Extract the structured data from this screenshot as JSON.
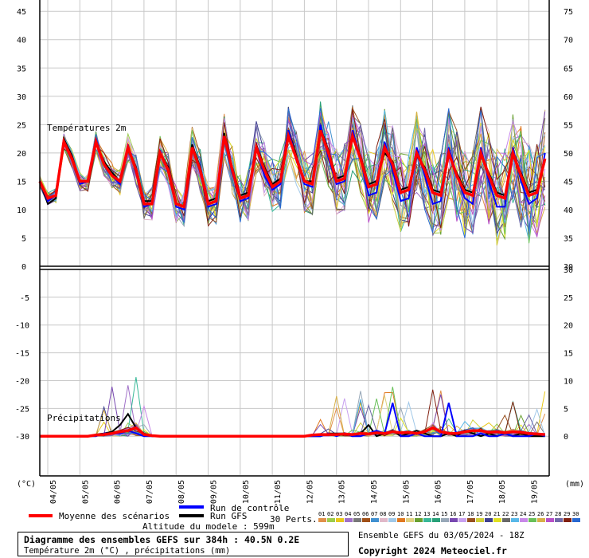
{
  "chart_data": [
    {
      "type": "line",
      "title": "Températures 2m",
      "left_axis_unit": "(°C)",
      "right_axis_unit": "(mm)",
      "ylim": [
        0,
        47
      ],
      "y_ticks": [
        0,
        5,
        10,
        15,
        20,
        25,
        30,
        35,
        40,
        45
      ],
      "y2_ticks": [
        30,
        35,
        40,
        45,
        50,
        55,
        60,
        65,
        70,
        75
      ],
      "x_labels": [
        "04/05",
        "05/05",
        "06/05",
        "07/05",
        "08/05",
        "09/05",
        "10/05",
        "11/05",
        "12/05",
        "13/05",
        "14/05",
        "15/05",
        "16/05",
        "17/05",
        "18/05",
        "19/05"
      ],
      "grid": true,
      "series": [
        {
          "name": "Moyenne des scénarios",
          "color": "#ff0000",
          "x": [
            0,
            0.25,
            0.5,
            0.75,
            1,
            1.25,
            1.5,
            1.75,
            2,
            2.25,
            2.5,
            2.75,
            3,
            3.25,
            3.5,
            3.75,
            4,
            4.25,
            4.5,
            4.75,
            5,
            5.25,
            5.5,
            5.75,
            6,
            6.25,
            6.5,
            6.75,
            7,
            7.25,
            7.5,
            7.75,
            8,
            8.25,
            8.5,
            8.75,
            9,
            9.25,
            9.5,
            9.75,
            10,
            10.25,
            10.5,
            10.75,
            11,
            11.25,
            11.5,
            11.75,
            12,
            12.25,
            12.5,
            12.75,
            13,
            13.25,
            13.5,
            13.75,
            14,
            14.25,
            14.5,
            14.75,
            15,
            15.25,
            15.5,
            15.75
          ],
          "y": [
            15,
            12,
            12.5,
            22,
            19,
            15,
            15,
            22,
            18,
            16,
            15,
            21,
            17,
            11,
            11,
            20,
            17,
            11,
            10.5,
            21,
            17,
            11,
            11.5,
            23,
            17,
            12,
            12.5,
            21,
            17,
            14,
            15,
            23,
            19,
            15,
            14.5,
            24,
            20,
            15,
            15.5,
            23,
            19,
            14,
            14.5,
            21,
            18,
            13,
            13.5,
            20,
            17,
            13,
            12.5,
            20,
            16,
            13,
            12.5,
            20,
            16,
            12.5,
            12,
            20,
            16,
            12.5,
            13,
            19
          ]
        },
        {
          "name": "Run de contrôle",
          "color": "#0000ff",
          "x": [
            0,
            0.25,
            0.5,
            0.75,
            1,
            1.25,
            1.5,
            1.75,
            2,
            2.25,
            2.5,
            2.75,
            3,
            3.25,
            3.5,
            3.75,
            4,
            4.25,
            4.5,
            4.75,
            5,
            5.25,
            5.5,
            5.75,
            6,
            6.25,
            6.5,
            6.75,
            7,
            7.25,
            7.5,
            7.75,
            8,
            8.25,
            8.5,
            8.75,
            9,
            9.25,
            9.5,
            9.75,
            10,
            10.25,
            10.5,
            10.75,
            11,
            11.25,
            11.5,
            11.75,
            12,
            12.25,
            12.5,
            12.75,
            13,
            13.25,
            13.5,
            13.75,
            14,
            14.25,
            14.5,
            14.75,
            15,
            15.25,
            15.5,
            15.75
          ],
          "y": [
            15,
            11.5,
            12.5,
            22,
            19,
            14.5,
            15,
            22.5,
            18,
            16,
            14.5,
            21.5,
            16.5,
            10.5,
            11,
            20.5,
            16.5,
            10.5,
            10,
            21,
            16.5,
            10.5,
            11,
            23,
            16.5,
            11.5,
            12,
            21,
            16,
            13.5,
            14.5,
            24,
            19,
            14.5,
            14,
            25,
            19,
            14.5,
            15,
            24,
            19,
            12.5,
            13,
            22,
            17,
            11.5,
            12,
            21,
            16,
            11,
            11.5,
            21,
            16,
            12,
            11,
            21,
            15,
            10.5,
            10.5,
            21,
            15,
            11,
            12,
            20
          ]
        },
        {
          "name": "Run GFS",
          "color": "#000000",
          "x": [
            0,
            0.25,
            0.5,
            0.75,
            1,
            1.25,
            1.5,
            1.75,
            2,
            2.25,
            2.5,
            2.75,
            3,
            3.25,
            3.5,
            3.75,
            4,
            4.25,
            4.5,
            4.75,
            5,
            5.25,
            5.5,
            5.75,
            6,
            6.25,
            6.5,
            6.75,
            7,
            7.25,
            7.5,
            7.75,
            8,
            8.25,
            8.5,
            8.75,
            9,
            9.25,
            9.5,
            9.75,
            10,
            10.25,
            10.5,
            10.75,
            11,
            11.25,
            11.5,
            11.75,
            12,
            12.25,
            12.5,
            12.75,
            13,
            13.25,
            13.5,
            13.75,
            14,
            14.25,
            14.5,
            14.75,
            15,
            15.25,
            15.5,
            15.75
          ],
          "y": [
            15,
            11,
            12,
            22.5,
            19.5,
            15,
            15,
            22,
            18.5,
            16.5,
            15,
            21,
            17.5,
            11.5,
            11.5,
            20,
            17.5,
            11,
            10.5,
            21.5,
            17.5,
            11.5,
            12,
            23.5,
            17.5,
            12.5,
            13,
            21.5,
            17.5,
            14.5,
            15.5,
            24,
            19.5,
            15,
            15,
            24.5,
            20.5,
            15.5,
            16,
            23,
            19.5,
            14.5,
            15,
            20,
            18.5,
            13.5,
            14,
            19.5,
            17.5,
            13.5,
            13,
            19.5,
            16.5,
            13.5,
            13,
            19.5,
            16.5,
            13,
            12.5,
            19.5,
            16.5,
            13,
            13.5,
            18.5
          ]
        }
      ]
    },
    {
      "type": "line",
      "title": "Précipitations",
      "left_axis_unit": "(°C)",
      "right_axis_unit": "(mm)",
      "ylim": [
        -37,
        0
      ],
      "y_ticks": [
        0,
        -5,
        -10,
        -15,
        -20,
        -25,
        -30
      ],
      "y2_ticks": [
        30,
        25,
        20,
        15,
        10,
        5,
        0
      ],
      "x_labels": [
        "04/05",
        "05/05",
        "06/05",
        "07/05",
        "08/05",
        "09/05",
        "10/05",
        "11/05",
        "12/05",
        "13/05",
        "14/05",
        "15/05",
        "16/05",
        "17/05",
        "18/05",
        "19/05"
      ],
      "grid": true,
      "series": [
        {
          "name": "Moyenne des scénarios",
          "color": "#ff0000",
          "x": [
            0,
            0.25,
            0.5,
            0.75,
            1,
            1.25,
            1.5,
            1.75,
            2,
            2.25,
            2.5,
            2.75,
            3,
            3.25,
            3.5,
            3.75,
            4,
            4.25,
            4.5,
            4.75,
            5,
            5.25,
            5.5,
            5.75,
            6,
            6.25,
            6.5,
            6.75,
            7,
            7.25,
            7.5,
            7.75,
            8,
            8.25,
            8.5,
            8.75,
            9,
            9.25,
            9.5,
            9.75,
            10,
            10.25,
            10.5,
            10.75,
            11,
            11.25,
            11.5,
            11.75,
            12,
            12.25,
            12.5,
            12.75,
            13,
            13.25,
            13.5,
            13.75,
            14,
            14.25,
            14.5,
            14.75,
            15,
            15.25,
            15.5,
            15.75
          ],
          "y": [
            0,
            0,
            0,
            0,
            0,
            0,
            0,
            0.2,
            0.3,
            0.5,
            0.8,
            1,
            1.5,
            0.3,
            0.1,
            0,
            0,
            0,
            0,
            0,
            0,
            0,
            0,
            0,
            0,
            0,
            0,
            0,
            0,
            0,
            0,
            0,
            0,
            0,
            0.2,
            0.3,
            0.3,
            0.3,
            0.4,
            0.3,
            0.5,
            0.4,
            0.6,
            0.5,
            0.8,
            0.6,
            0.7,
            0.5,
            0.8,
            1.5,
            0.8,
            0.5,
            0.5,
            0.8,
            1,
            1,
            0.7,
            0.8,
            0.6,
            0.8,
            0.7,
            0.5,
            0.4,
            0.3
          ]
        },
        {
          "name": "Run de contrôle",
          "color": "#0000ff",
          "x": [
            0,
            0.25,
            0.5,
            0.75,
            1,
            1.25,
            1.5,
            1.75,
            2,
            2.25,
            2.5,
            2.75,
            3,
            3.25,
            3.5,
            3.75,
            4,
            4.25,
            4.5,
            4.75,
            5,
            5.25,
            5.5,
            5.75,
            6,
            6.25,
            6.5,
            6.75,
            7,
            7.25,
            7.5,
            7.75,
            8,
            8.25,
            8.5,
            8.75,
            9,
            9.25,
            9.5,
            9.75,
            10,
            10.25,
            10.5,
            10.75,
            11,
            11.25,
            11.5,
            11.75,
            12,
            12.25,
            12.5,
            12.75,
            13,
            13.25,
            13.5,
            13.75,
            14,
            14.25,
            14.5,
            14.75,
            15,
            15.25,
            15.5,
            15.75
          ],
          "y": [
            0,
            0,
            0,
            0,
            0,
            0,
            0,
            0,
            0.5,
            0.5,
            0.5,
            1,
            0.5,
            0,
            0,
            0,
            0,
            0,
            0,
            0,
            0,
            0,
            0,
            0,
            0,
            0,
            0,
            0,
            0,
            0,
            0,
            0,
            0,
            0,
            0,
            0,
            0.5,
            0,
            0.5,
            0,
            0,
            0.5,
            1,
            0.5,
            6,
            0,
            0,
            0.5,
            0,
            0,
            0,
            6,
            0,
            0,
            0,
            0.5,
            0,
            0,
            0.5,
            0,
            0,
            0,
            0.5,
            0
          ]
        },
        {
          "name": "Run GFS",
          "color": "#000000",
          "x": [
            0,
            0.25,
            0.5,
            0.75,
            1,
            1.25,
            1.5,
            1.75,
            2,
            2.25,
            2.5,
            2.75,
            3,
            3.25,
            3.5,
            3.75,
            4,
            4.25,
            4.5,
            4.75,
            5,
            5.25,
            5.5,
            5.75,
            6,
            6.25,
            6.5,
            6.75,
            7,
            7.25,
            7.5,
            7.75,
            8,
            8.25,
            8.5,
            8.75,
            9,
            9.25,
            9.5,
            9.75,
            10,
            10.25,
            10.5,
            10.75,
            11,
            11.25,
            11.5,
            11.75,
            12,
            12.25,
            12.5,
            12.75,
            13,
            13.25,
            13.5,
            13.75,
            14,
            14.25,
            14.5,
            14.75,
            15,
            15.25,
            15.5,
            15.75
          ],
          "y": [
            0,
            0,
            0,
            0,
            0,
            0,
            0,
            0.3,
            0.5,
            0.8,
            2,
            4,
            1.5,
            0.5,
            0,
            0,
            0,
            0,
            0,
            0,
            0,
            0,
            0,
            0,
            0,
            0,
            0,
            0,
            0,
            0,
            0,
            0,
            0,
            0,
            0,
            0,
            0.5,
            0.5,
            0.5,
            0,
            0.5,
            2,
            0,
            0.5,
            1,
            0,
            0.5,
            1,
            0.5,
            0,
            0,
            0.5,
            0,
            1,
            0.5,
            0,
            0.5,
            0,
            0.5,
            0,
            0.5,
            0,
            0,
            0
          ]
        }
      ]
    }
  ],
  "left_unit": "(°C)",
  "right_unit": "(mm)",
  "legend": {
    "mean": "Moyenne des scénarios",
    "control": "Run de contrôle",
    "gfs": "Run GFS",
    "perts": "30 Perts.",
    "altitude": "Altitude du modele : 599m",
    "colors": {
      "mean": "#ff0000",
      "control": "#0000ff",
      "gfs": "#000000"
    },
    "perts_labels": [
      "01",
      "02",
      "03",
      "04",
      "05",
      "06",
      "07",
      "08",
      "09",
      "10",
      "11",
      "12",
      "13",
      "14",
      "15",
      "16",
      "17",
      "18",
      "19",
      "20",
      "21",
      "22",
      "23",
      "24",
      "25",
      "26",
      "27",
      "28",
      "29",
      "30"
    ],
    "perts_colors": [
      "#e0904a",
      "#9ccc4c",
      "#e8c818",
      "#a070c8",
      "#787878",
      "#a05018",
      "#4090d0",
      "#e0b8c8",
      "#a0c8e8",
      "#e07820",
      "#e0d080",
      "#68a030",
      "#38b898",
      "#28a078",
      "#98a8b8",
      "#7848b0",
      "#c8a0f0",
      "#985020",
      "#d0d038",
      "#404090",
      "#e0e020",
      "#686868",
      "#58b8e8",
      "#c888e8",
      "#68c058",
      "#d8b048",
      "#b850c8",
      "#7068a8",
      "#802010",
      "#2868d0"
    ]
  },
  "footer": {
    "title": "Diagramme des ensembles GEFS sur 384h : 40.5N 0.2E",
    "subtitle": "Température 2m (°C) , précipitations (mm)",
    "run": "Ensemble GEFS du 03/05/2024 - 18Z",
    "copyright": "Copyright 2024 Meteociel.fr"
  }
}
